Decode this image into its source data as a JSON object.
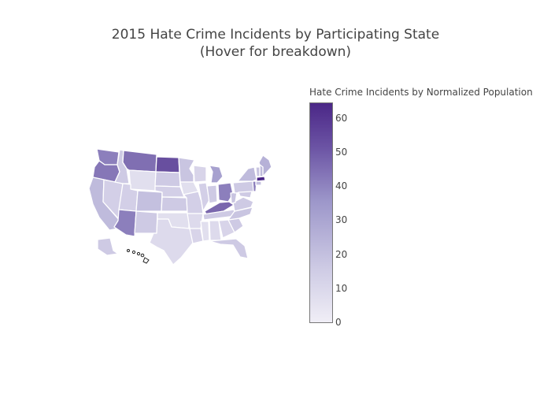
{
  "title_line1": "2015 Hate Crime Incidents by Participating State",
  "title_line2": "(Hover for breakdown)",
  "colorbar": {
    "title": "Hate Crime Incidents by Normalized Population",
    "ticks": [
      "0",
      "10",
      "20",
      "30",
      "40",
      "50",
      "60"
    ],
    "min": 0,
    "max": 62,
    "colors": {
      "low": "#f0eef6",
      "mid": "#9d97ca",
      "high": "#4b2787"
    }
  },
  "chart_data": {
    "type": "choropleth",
    "title": "2015 Hate Crime Incidents by Participating State",
    "subtitle": "(Hover for breakdown)",
    "colorbar_title": "Hate Crime Incidents by Normalized Population",
    "range": [
      0,
      62
    ],
    "states": [
      {
        "id": "WA",
        "value": 40
      },
      {
        "id": "OR",
        "value": 42
      },
      {
        "id": "CA",
        "value": 20
      },
      {
        "id": "NV",
        "value": 12
      },
      {
        "id": "ID",
        "value": 14
      },
      {
        "id": "MT",
        "value": 44
      },
      {
        "id": "WY",
        "value": 6
      },
      {
        "id": "UT",
        "value": 12
      },
      {
        "id": "AZ",
        "value": 40
      },
      {
        "id": "CO",
        "value": 18
      },
      {
        "id": "NM",
        "value": 14
      },
      {
        "id": "ND",
        "value": 52
      },
      {
        "id": "SD",
        "value": 14
      },
      {
        "id": "NE",
        "value": 12
      },
      {
        "id": "KS",
        "value": 14
      },
      {
        "id": "OK",
        "value": 6
      },
      {
        "id": "TX",
        "value": 8
      },
      {
        "id": "MN",
        "value": 16
      },
      {
        "id": "IA",
        "value": 6
      },
      {
        "id": "MO",
        "value": 12
      },
      {
        "id": "AR",
        "value": 8
      },
      {
        "id": "LA",
        "value": 10
      },
      {
        "id": "WI",
        "value": 10
      },
      {
        "id": "IL",
        "value": 12
      },
      {
        "id": "MI",
        "value": 30
      },
      {
        "id": "IN",
        "value": 14
      },
      {
        "id": "OH",
        "value": 40
      },
      {
        "id": "KY",
        "value": 46
      },
      {
        "id": "TN",
        "value": 14
      },
      {
        "id": "MS",
        "value": 6
      },
      {
        "id": "AL",
        "value": 8
      },
      {
        "id": "GA",
        "value": 10
      },
      {
        "id": "FL",
        "value": 14
      },
      {
        "id": "SC",
        "value": 14
      },
      {
        "id": "NC",
        "value": 16
      },
      {
        "id": "VA",
        "value": 14
      },
      {
        "id": "WV",
        "value": 16
      },
      {
        "id": "PA",
        "value": 14
      },
      {
        "id": "NY",
        "value": 20
      },
      {
        "id": "NJ",
        "value": 40
      },
      {
        "id": "MD",
        "value": 14
      },
      {
        "id": "ME",
        "value": 24
      },
      {
        "id": "NH",
        "value": 20
      },
      {
        "id": "VT",
        "value": 16
      },
      {
        "id": "MA",
        "value": 62
      },
      {
        "id": "CT",
        "value": 18
      },
      {
        "id": "AK",
        "value": 14
      }
    ]
  }
}
